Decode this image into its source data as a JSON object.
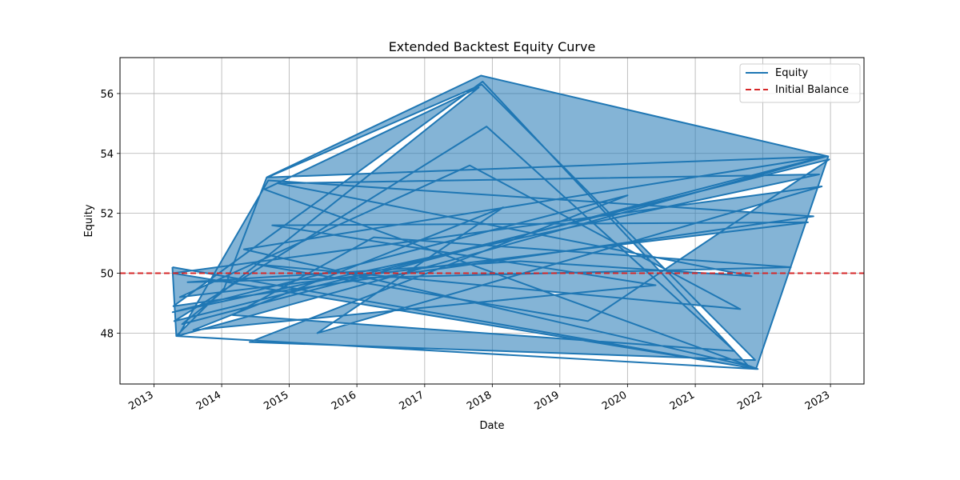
{
  "chart_data": {
    "type": "line",
    "title": "Extended Backtest Equity Curve",
    "xlabel": "Date",
    "ylabel": "Equity",
    "x_ticks": [
      "2013",
      "2014",
      "2015",
      "2016",
      "2017",
      "2018",
      "2019",
      "2020",
      "2021",
      "2022",
      "2023"
    ],
    "y_ticks": [
      48,
      50,
      52,
      54,
      56
    ],
    "xlim": [
      "2012-07-01",
      "2023-07-01"
    ],
    "ylim": [
      46.3,
      57.2
    ],
    "grid": true,
    "legend_position": "top-right",
    "series": [
      {
        "name": "Equity",
        "color": "#1f77b4",
        "style": "solid",
        "points": [
          [
            "2013-04-10",
            50.2
          ],
          [
            "2013-05-01",
            47.9
          ],
          [
            "2014-01-15",
            49.5
          ],
          [
            "2014-09-01",
            53.2
          ],
          [
            "2017-11-01",
            56.6
          ],
          [
            "2022-12-20",
            53.9
          ],
          [
            "2021-11-25",
            46.8
          ],
          [
            "2013-05-10",
            47.9
          ],
          [
            "2014-09-10",
            53.1
          ],
          [
            "2022-10-01",
            51.9
          ],
          [
            "2013-04-15",
            48.9
          ],
          [
            "2017-11-10",
            56.4
          ],
          [
            "2021-10-15",
            46.9
          ],
          [
            "2014-05-01",
            50.8
          ],
          [
            "2022-12-01",
            53.9
          ],
          [
            "2013-06-01",
            48.3
          ],
          [
            "2017-10-20",
            56.2
          ],
          [
            "2014-08-20",
            52.8
          ],
          [
            "2021-12-05",
            46.8
          ],
          [
            "2013-04-12",
            50.0
          ],
          [
            "2022-11-15",
            52.9
          ],
          [
            "2015-06-01",
            48.0
          ],
          [
            "2018-03-01",
            52.2
          ],
          [
            "2013-08-01",
            48.1
          ],
          [
            "2020-06-01",
            49.6
          ],
          [
            "2014-10-01",
            51.6
          ],
          [
            "2022-09-01",
            51.7
          ],
          [
            "2013-05-20",
            49.2
          ],
          [
            "2017-09-01",
            53.6
          ],
          [
            "2021-09-01",
            48.8
          ],
          [
            "2014-07-01",
            50.3
          ],
          [
            "2019-06-01",
            48.4
          ],
          [
            "2022-12-25",
            53.8
          ],
          [
            "2013-04-20",
            48.4
          ],
          [
            "2017-12-01",
            54.9
          ],
          [
            "2021-08-01",
            47.4
          ],
          [
            "2014-03-01",
            48.6
          ],
          [
            "2016-04-01",
            51.2
          ],
          [
            "2022-06-01",
            50.2
          ],
          [
            "2013-07-01",
            49.7
          ],
          [
            "2018-06-01",
            50.4
          ],
          [
            "2021-11-01",
            49.9
          ],
          [
            "2014-11-01",
            53.0
          ],
          [
            "2022-11-01",
            53.3
          ],
          [
            "2013-04-11",
            48.7
          ],
          [
            "2020-01-01",
            52.6
          ],
          [
            "2014-06-01",
            47.7
          ],
          [
            "2021-11-20",
            47.1
          ],
          [
            "2017-11-05",
            56.3
          ],
          [
            "2014-09-05",
            53.2
          ],
          [
            "2022-12-10",
            53.9
          ],
          [
            "2013-05-05",
            47.9
          ],
          [
            "2021-11-28",
            46.8
          ],
          [
            "2013-04-10",
            50.2
          ]
        ]
      },
      {
        "name": "Initial Balance",
        "color": "#d62728",
        "style": "dashed",
        "constant": 50
      }
    ]
  }
}
